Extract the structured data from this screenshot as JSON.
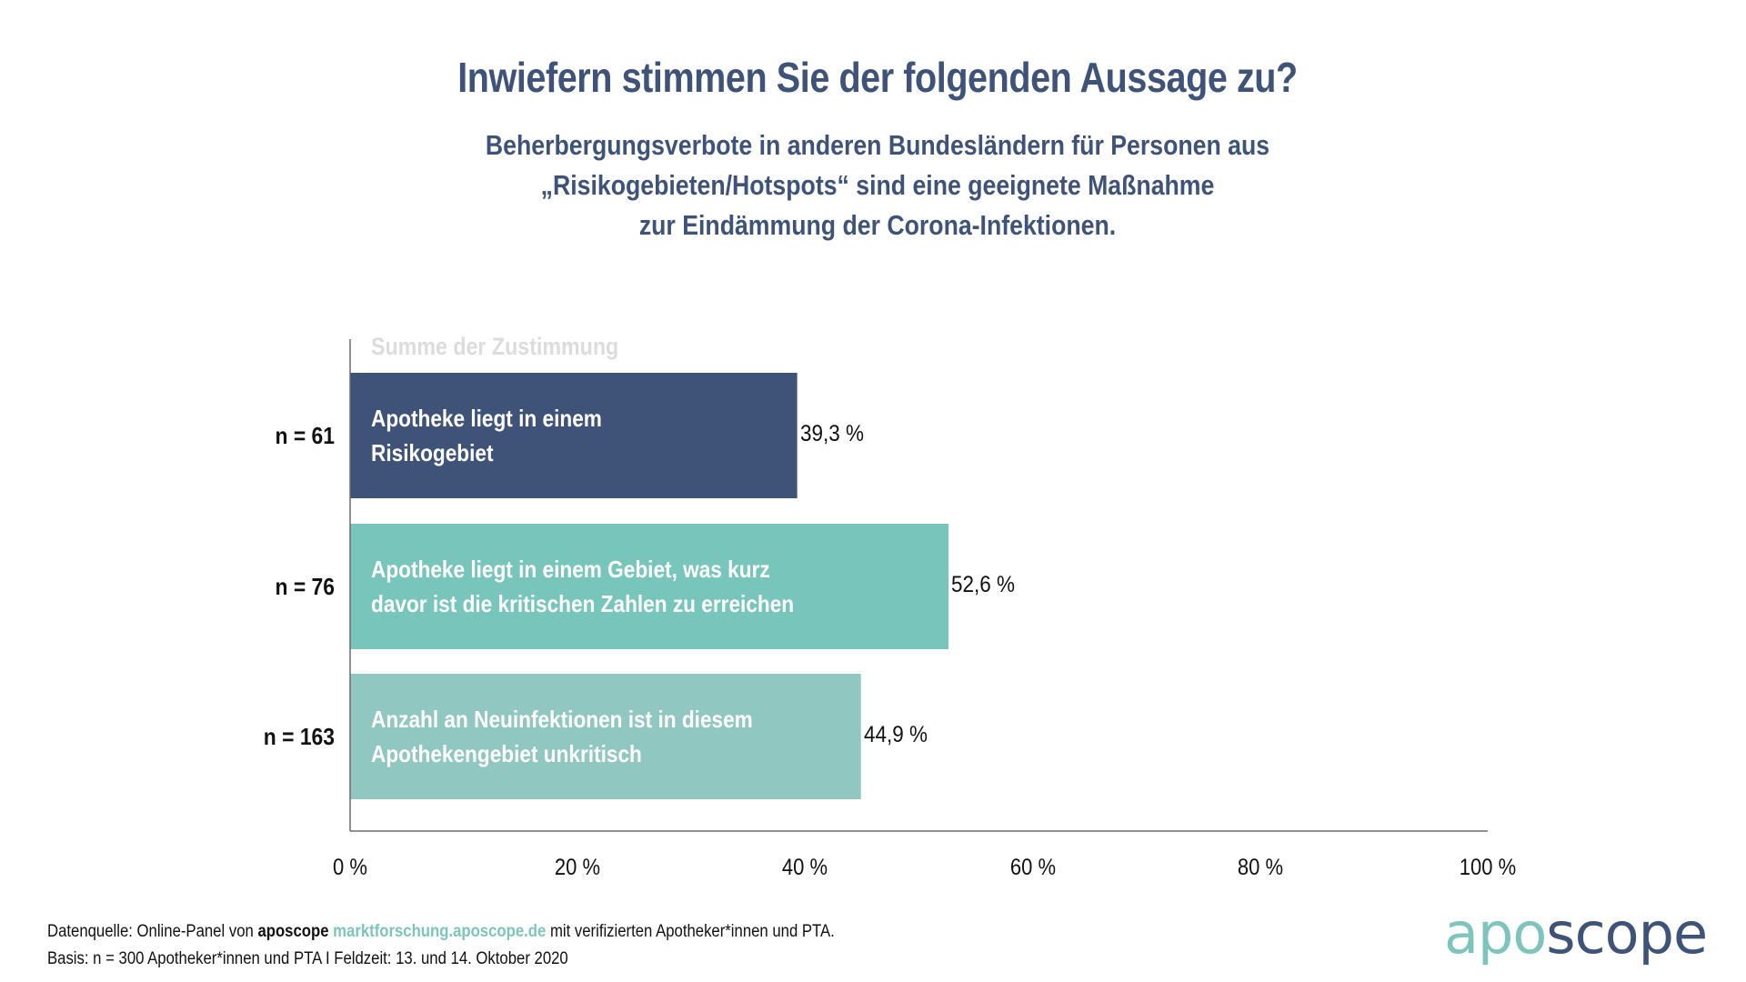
{
  "header": {
    "title": "Inwiefern stimmen Sie der folgenden Aussage zu?",
    "subtitle_lines": [
      "Beherbergungsverbote in anderen Bundesländern für Personen aus",
      "„Risikogebieten/Hotspots“ sind eine geeignete Maßnahme",
      "zur Eindämmung der Corona-Infektionen."
    ]
  },
  "chart_data": {
    "type": "bar",
    "orientation": "horizontal",
    "title": "Summe der Zustimmung",
    "categories": [
      "Apotheke liegt in einem Risikogebiet",
      "Apotheke liegt in einem Gebiet, was kurz davor ist die kritischen Zahlen zu erreichen",
      "Anzahl an Neuinfektionen ist in diesem Apothekengebiet unkritisch"
    ],
    "category_lines": [
      [
        "Apotheke liegt in einem",
        "Risikogebiet"
      ],
      [
        "Apotheke liegt in einem Gebiet, was kurz",
        "davor ist die kritischen Zahlen zu erreichen"
      ],
      [
        "Anzahl an Neuinfektionen ist in diesem",
        "Apothekengebiet unkritisch"
      ]
    ],
    "values": [
      39.3,
      52.6,
      44.9
    ],
    "value_labels": [
      "39,3 %",
      "52,6 %",
      "44,9 %"
    ],
    "n_labels": [
      "n = 61",
      "n = 76",
      "n = 163"
    ],
    "colors": [
      "#3f5378",
      "#78c5bb",
      "#91c7c1"
    ],
    "xlim": [
      0,
      100
    ],
    "xticks": [
      0,
      20,
      40,
      60,
      80,
      100
    ],
    "xtick_labels": [
      "0 %",
      "20 %",
      "40 %",
      "60 %",
      "80 %",
      "100 %"
    ],
    "xlabel": "",
    "ylabel": "",
    "grid": false,
    "legend": "none"
  },
  "footer": {
    "source_prefix": "Datenquelle: Online-Panel von ",
    "source_brand": "aposcope",
    "source_link": "marktforschung.aposcope.de",
    "source_suffix": " mit verifizierten Apotheker*innen und PTA.",
    "basis": "Basis: n = 300 Apotheker*innen und PTA I Feldzeit: 13. und 14. Oktober 2020"
  },
  "logo": {
    "part1": "apo",
    "part2": "scope"
  },
  "colors": {
    "brand_navy": "#3f5378",
    "brand_teal": "#7dc5ba"
  }
}
